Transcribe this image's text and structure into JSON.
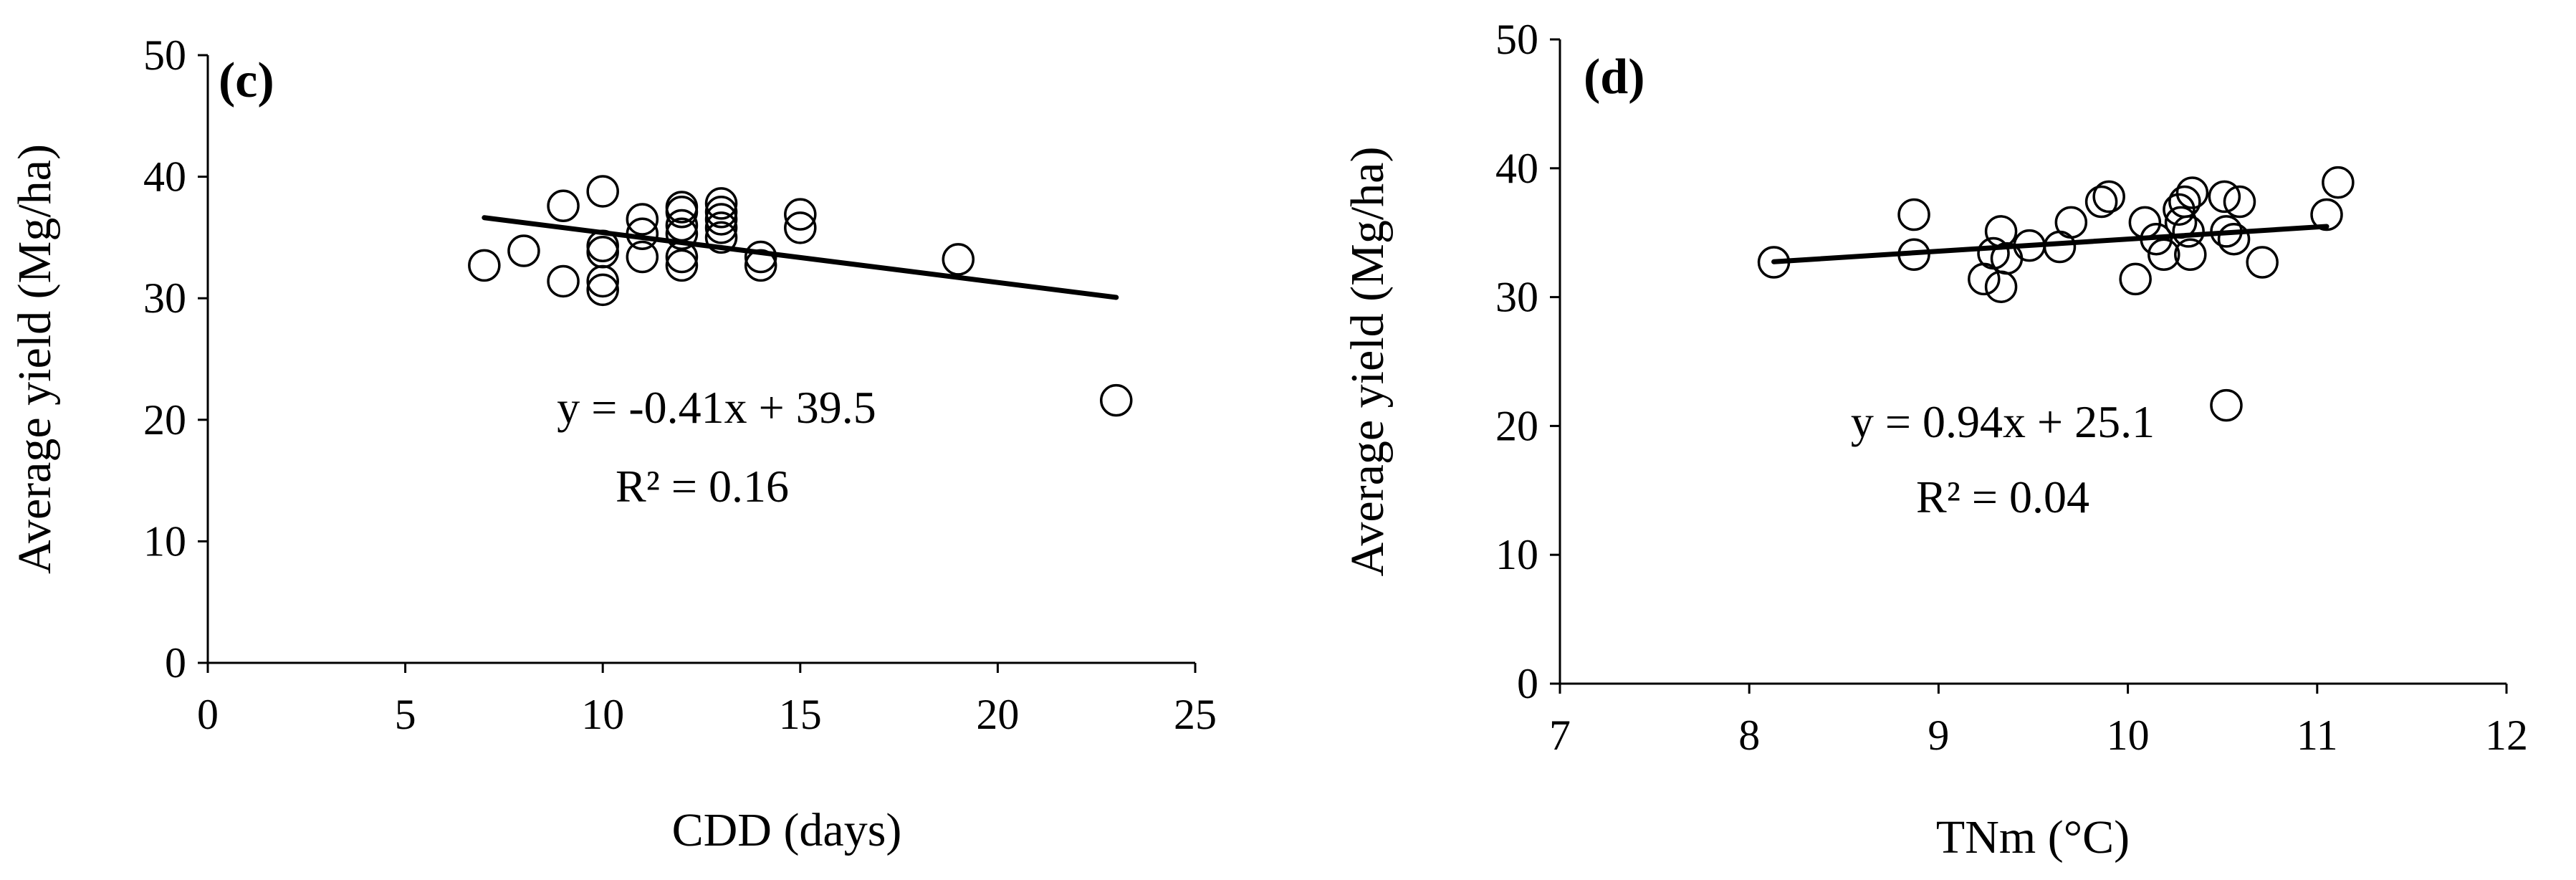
{
  "chart_data": [
    {
      "type": "scatter",
      "panel_label": "(c)",
      "xlabel": "CDD (days)",
      "ylabel": "Average yield (Mg/ha)",
      "xlim": [
        0,
        25
      ],
      "ylim": [
        0,
        50
      ],
      "x_ticks": [
        "0",
        "5",
        "10",
        "15",
        "20",
        "25"
      ],
      "y_ticks": [
        "0",
        "10",
        "20",
        "30",
        "40",
        "50"
      ],
      "grid": false,
      "points": [
        {
          "x": 7,
          "y": 32.7
        },
        {
          "x": 8,
          "y": 33.9
        },
        {
          "x": 9,
          "y": 37.6
        },
        {
          "x": 9,
          "y": 31.4
        },
        {
          "x": 10,
          "y": 38.8
        },
        {
          "x": 10,
          "y": 34.3
        },
        {
          "x": 10,
          "y": 33.8
        },
        {
          "x": 10,
          "y": 31.4
        },
        {
          "x": 10,
          "y": 30.7
        },
        {
          "x": 11,
          "y": 36.5
        },
        {
          "x": 11,
          "y": 35.3
        },
        {
          "x": 11,
          "y": 33.4
        },
        {
          "x": 12,
          "y": 37.5
        },
        {
          "x": 12,
          "y": 37.1
        },
        {
          "x": 12,
          "y": 36.0
        },
        {
          "x": 12,
          "y": 35.3
        },
        {
          "x": 12,
          "y": 33.4
        },
        {
          "x": 12,
          "y": 32.7
        },
        {
          "x": 13,
          "y": 37.8
        },
        {
          "x": 13,
          "y": 37.1
        },
        {
          "x": 13,
          "y": 36.5
        },
        {
          "x": 13,
          "y": 35.8
        },
        {
          "x": 13,
          "y": 35.0
        },
        {
          "x": 14,
          "y": 33.4
        },
        {
          "x": 14,
          "y": 32.7
        },
        {
          "x": 15,
          "y": 36.9
        },
        {
          "x": 15,
          "y": 35.8
        },
        {
          "x": 19,
          "y": 33.2
        },
        {
          "x": 23,
          "y": 21.6
        }
      ],
      "trendline": {
        "slope": -0.41,
        "intercept": 39.5,
        "x_range": [
          7,
          23
        ]
      },
      "equation": "y = -0.41x + 39.5",
      "r2_label": "R² = 0.16"
    },
    {
      "type": "scatter",
      "panel_label": "(d)",
      "xlabel": "TNm (°C)",
      "ylabel": "Average yield (Mg/ha)",
      "xlim": [
        7,
        12
      ],
      "ylim": [
        0,
        50
      ],
      "x_ticks": [
        "7",
        "8",
        "9",
        "10",
        "11",
        "12"
      ],
      "y_ticks": [
        "0",
        "10",
        "20",
        "30",
        "40",
        "50"
      ],
      "grid": false,
      "points": [
        {
          "x": 8.13,
          "y": 32.7
        },
        {
          "x": 8.87,
          "y": 36.4
        },
        {
          "x": 8.87,
          "y": 33.3
        },
        {
          "x": 9.24,
          "y": 31.4
        },
        {
          "x": 9.29,
          "y": 33.4
        },
        {
          "x": 9.33,
          "y": 35.1
        },
        {
          "x": 9.33,
          "y": 30.8
        },
        {
          "x": 9.36,
          "y": 33.0
        },
        {
          "x": 9.48,
          "y": 34.0
        },
        {
          "x": 9.64,
          "y": 33.9
        },
        {
          "x": 9.7,
          "y": 35.8
        },
        {
          "x": 9.86,
          "y": 37.4
        },
        {
          "x": 9.9,
          "y": 37.8
        },
        {
          "x": 10.04,
          "y": 31.4
        },
        {
          "x": 10.09,
          "y": 35.8
        },
        {
          "x": 10.15,
          "y": 34.5
        },
        {
          "x": 10.19,
          "y": 33.3
        },
        {
          "x": 10.27,
          "y": 36.8
        },
        {
          "x": 10.28,
          "y": 35.8
        },
        {
          "x": 10.3,
          "y": 37.4
        },
        {
          "x": 10.32,
          "y": 35.1
        },
        {
          "x": 10.33,
          "y": 33.3
        },
        {
          "x": 10.34,
          "y": 38.1
        },
        {
          "x": 10.51,
          "y": 37.8
        },
        {
          "x": 10.52,
          "y": 35.1
        },
        {
          "x": 10.56,
          "y": 34.5
        },
        {
          "x": 10.59,
          "y": 37.4
        },
        {
          "x": 10.71,
          "y": 32.7
        },
        {
          "x": 11.05,
          "y": 36.4
        },
        {
          "x": 11.11,
          "y": 38.9
        },
        {
          "x": 10.52,
          "y": 21.6
        }
      ],
      "trendline": {
        "slope": 0.94,
        "intercept": 25.1,
        "x_range": [
          8.13,
          11.05
        ]
      },
      "equation": "y = 0.94x + 25.1",
      "r2_label": "R² = 0.04"
    }
  ]
}
